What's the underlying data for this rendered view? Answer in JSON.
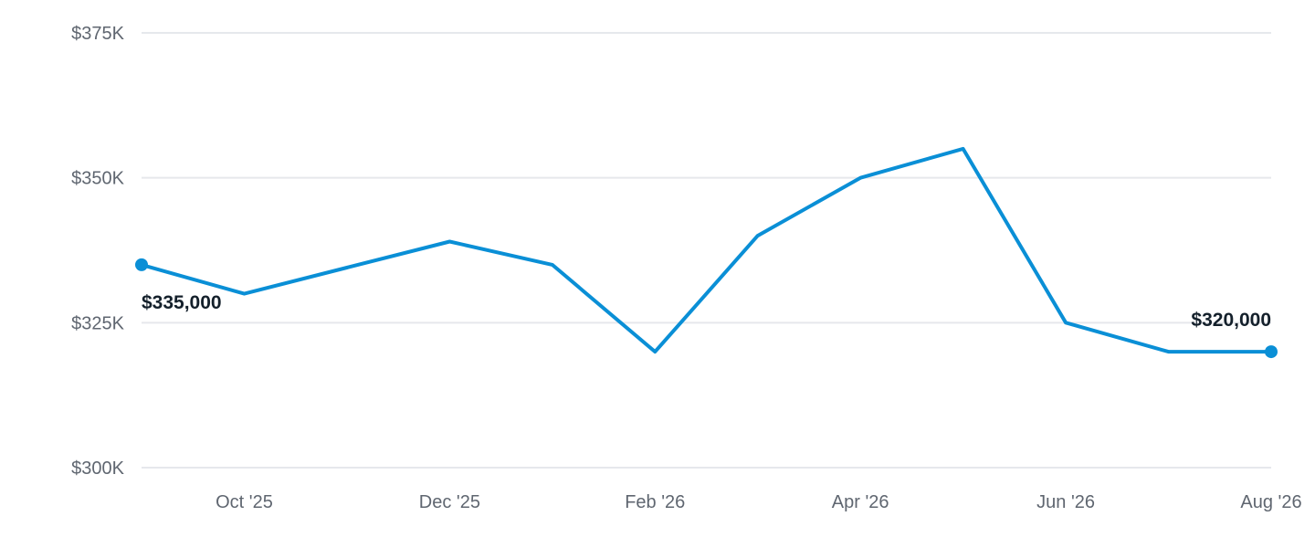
{
  "chart_data": {
    "type": "line",
    "title": "",
    "xlabel": "",
    "ylabel": "",
    "x": [
      "2025-09",
      "2025-10",
      "2025-11",
      "2025-12",
      "2026-01",
      "2026-02",
      "2026-03",
      "2026-04",
      "2026-05",
      "2026-06",
      "2026-07",
      "2026-08"
    ],
    "x_tick_labels": [
      {
        "x": "2025-10",
        "label": "Oct '25"
      },
      {
        "x": "2025-12",
        "label": "Dec '25"
      },
      {
        "x": "2026-02",
        "label": "Feb '26"
      },
      {
        "x": "2026-04",
        "label": "Apr '26"
      },
      {
        "x": "2026-06",
        "label": "Jun '26"
      },
      {
        "x": "2026-08",
        "label": "Aug '26"
      }
    ],
    "series": [
      {
        "values": [
          335000,
          330000,
          334500,
          339000,
          335000,
          320000,
          340000,
          350000,
          355000,
          325000,
          320000,
          320000
        ]
      }
    ],
    "ylim": [
      300000,
      375000
    ],
    "y_ticks": [
      {
        "value": 300000,
        "label": "$300K"
      },
      {
        "value": 325000,
        "label": "$325K"
      },
      {
        "value": 350000,
        "label": "$350K"
      },
      {
        "value": 375000,
        "label": "$375K"
      }
    ],
    "annotations": [
      {
        "x": "2025-09",
        "label": "$335,000",
        "position": "below"
      },
      {
        "x": "2026-08",
        "label": "$320,000",
        "position": "above"
      }
    ],
    "grid": true,
    "legend": "none",
    "colors": {
      "series": "#0a8fd6",
      "grid": "#e6e8ec",
      "tick_text": "#5f6670",
      "label_text": "#14202b"
    }
  }
}
